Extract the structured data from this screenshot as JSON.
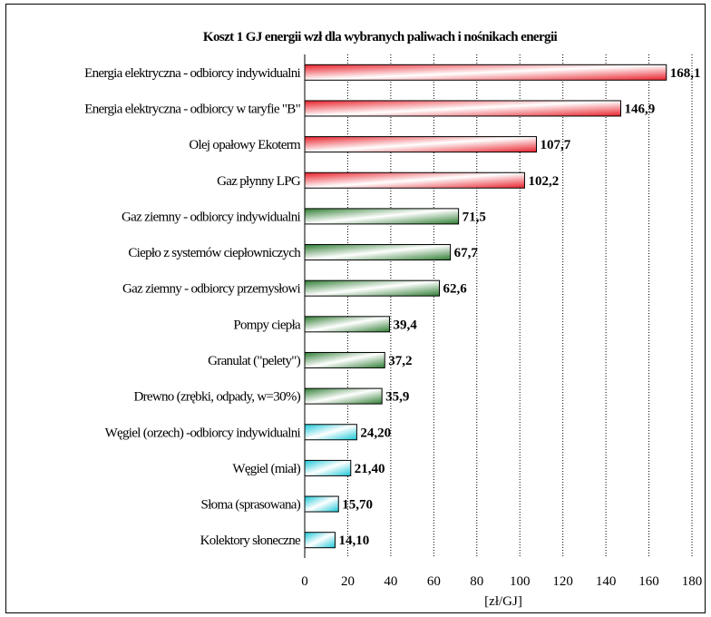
{
  "colors": {
    "red": "#e8202a",
    "green": "#2e7d32",
    "cyan": "#19c8d8"
  },
  "chart_data": {
    "type": "bar",
    "orientation": "horizontal",
    "title": "Koszt 1 GJ energii wzł dla wybranych paliwach i nośnikach energii",
    "xlabel": "[zł/GJ]",
    "ylabel": "",
    "xlim": [
      0,
      180
    ],
    "xticks": [
      "0",
      "20",
      "40",
      "60",
      "80",
      "100",
      "120",
      "140",
      "160",
      "180"
    ],
    "grid": "vertical dotted",
    "categories": [
      "Energia elektryczna - odbiorcy indywidualni",
      "Energia elektryczna - odbiorcy w taryfie \"B\"",
      "Olej opałowy Ekoterm",
      "Gaz płynny LPG",
      "Gaz ziemny - odbiorcy indywidualni",
      "Ciepło z systemów ciepłowniczych",
      "Gaz ziemny - odbiorcy przemysłowi",
      "Pompy ciepła",
      "Granulat (\"pelety\")",
      "Drewno (zrębki, odpady, w=30%)",
      "Węgiel (orzech) -odbiorcy indywidualni",
      "Węgiel (miał)",
      "Słoma (sprasowana)",
      "Kolektory słoneczne"
    ],
    "values": [
      168.1,
      146.9,
      107.7,
      102.2,
      71.5,
      67.7,
      62.6,
      39.4,
      37.2,
      35.9,
      24.2,
      21.4,
      15.7,
      14.1
    ],
    "value_labels": [
      "168,1",
      "146,9",
      "107,7",
      "102,2",
      "71,5",
      "67,7",
      "62,6",
      "39,4",
      "37,2",
      "35,9",
      "24,20",
      "21,40",
      "15,70",
      "14,10"
    ],
    "bar_colors": [
      "red",
      "red",
      "red",
      "red",
      "green",
      "green",
      "green",
      "green",
      "green",
      "green",
      "cyan",
      "cyan",
      "cyan",
      "cyan"
    ]
  }
}
